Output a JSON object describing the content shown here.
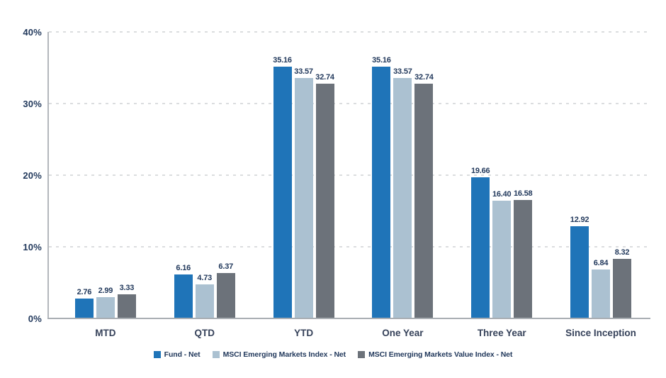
{
  "colors": {
    "fund": "#1f74b8",
    "msci_index": "#abc1d1",
    "msci_value_index": "#6c727a",
    "text_navy": "#22395c",
    "gridline": "#dbdddf",
    "axis_line": "#a9aeb4"
  },
  "chart_data": {
    "type": "bar",
    "title": "",
    "xlabel": "",
    "ylabel": "",
    "categories": [
      "MTD",
      "QTD",
      "YTD",
      "One Year",
      "Three Year",
      "Since Inception"
    ],
    "series": [
      {
        "name": "Fund - Net",
        "color_key": "fund",
        "values": [
          2.76,
          6.16,
          35.16,
          35.16,
          19.66,
          12.92
        ],
        "labels": [
          "2.76",
          "6.16",
          "35.16",
          "35.16",
          "19.66",
          "12.92"
        ]
      },
      {
        "name": "MSCI Emerging Markets Index - Net",
        "color_key": "msci_index",
        "values": [
          2.99,
          4.73,
          33.57,
          33.57,
          16.4,
          6.84
        ],
        "labels": [
          "2.99",
          "4.73",
          "33.57",
          "33.57",
          "16.40",
          "6.84"
        ]
      },
      {
        "name": "MSCI Emerging Markets Value Index - Net",
        "color_key": "msci_value_index",
        "values": [
          3.33,
          6.37,
          32.74,
          32.74,
          16.58,
          8.32
        ],
        "labels": [
          "3.33",
          "6.37",
          "32.74",
          "32.74",
          "16.58",
          "8.32"
        ]
      }
    ],
    "ylim": [
      0,
      40
    ],
    "y_ticks": [
      "0%",
      "10%",
      "20%",
      "30%",
      "40%"
    ],
    "grid": "horizontal-dashed",
    "legend_position": "bottom"
  }
}
